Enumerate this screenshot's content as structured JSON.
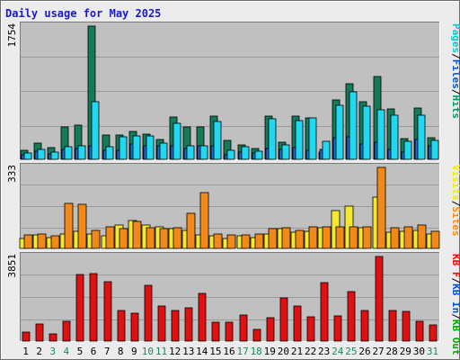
{
  "chart_data": {
    "type": "bar",
    "title": "Daily usage for May 2025",
    "categories": [
      "1",
      "2",
      "3",
      "4",
      "5",
      "6",
      "7",
      "8",
      "9",
      "10",
      "11",
      "12",
      "13",
      "14",
      "15",
      "16",
      "17",
      "18",
      "19",
      "20",
      "21",
      "22",
      "23",
      "24",
      "25",
      "26",
      "27",
      "28",
      "29",
      "30",
      "31"
    ],
    "weekend_days": [
      "3",
      "4",
      "10",
      "11",
      "17",
      "18",
      "24",
      "25",
      "31"
    ],
    "panels": [
      {
        "max_label": "1754",
        "ymax": 1754,
        "legend": [
          {
            "text": "Pages",
            "color": "#00cccc"
          },
          {
            "text": "Files",
            "color": "#0055cc"
          },
          {
            "text": "Hits",
            "color": "#009966"
          }
        ],
        "series": [
          {
            "name": "Hits",
            "color": "#157a58",
            "values": [
              114,
              216,
              158,
              428,
              456,
              1754,
              324,
              324,
              373,
              335,
              258,
              555,
              423,
              425,
              571,
              245,
              191,
              143,
              566,
              226,
              573,
              547,
              100,
              778,
              994,
              755,
              1093,
              663,
              275,
              678,
              280
            ]
          },
          {
            "name": "Files",
            "color": "#1f6fd1",
            "values": [
              60,
              110,
              70,
              130,
              140,
              180,
              120,
              120,
              200,
              180,
              180,
              180,
              140,
              180,
              180,
              60,
              100,
              80,
              140,
              130,
              150,
              120,
              130,
              280,
              300,
              200,
              230,
              130,
              100,
              260,
              180
            ]
          },
          {
            "name": "Pages",
            "color": "#22d8f0",
            "values": [
              80,
              130,
              100,
              170,
              180,
              758,
              160,
              300,
              303,
              306,
              217,
              478,
              175,
              175,
              503,
              115,
              161,
              110,
              536,
              191,
              510,
              541,
              240,
              710,
              892,
              700,
              652,
              580,
              240,
              585,
              250
            ]
          }
        ]
      },
      {
        "max_label": "333",
        "ymax": 333,
        "legend": [
          {
            "text": "Visits",
            "color": "#eeee00"
          },
          {
            "text": "Sites",
            "color": "#ff8800"
          }
        ],
        "series": [
          {
            "name": "Visits",
            "color": "#f5e830",
            "values": [
              42,
              55,
              45,
              60,
              70,
              60,
              52,
              95,
              115,
              95,
              90,
              80,
              75,
              55,
              50,
              40,
              50,
              45,
              60,
              80,
              65,
              70,
              85,
              155,
              175,
              85,
              210,
              65,
              70,
              75,
              60
            ]
          },
          {
            "name": "Sites",
            "color": "#f0881a",
            "values": [
              55,
              60,
              50,
              186,
              182,
              75,
              90,
              80,
              110,
              85,
              80,
              85,
              145,
              228,
              60,
              55,
              55,
              60,
              80,
              85,
              75,
              90,
              90,
              90,
              90,
              90,
              333,
              85,
              90,
              95,
              70
            ]
          }
        ]
      },
      {
        "max_label": "3851",
        "ymax": 3851,
        "legend": [
          {
            "text": "KB F",
            "color": "#ff0000"
          },
          {
            "text": "KB In",
            "color": "#0055cc"
          },
          {
            "text": "KB Out",
            "color": "#00aa00"
          }
        ],
        "series": [
          {
            "name": "KB F",
            "color": "#e01010",
            "values": [
              393,
              791,
              327,
              919,
              3020,
              3070,
              2700,
              1400,
              1253,
              2520,
              1600,
              1400,
              1530,
              2167,
              842,
              842,
              1176,
              541,
              1050,
              1950,
              1590,
              1120,
              2670,
              1140,
              2250,
              1400,
              3851,
              1400,
              1360,
              890,
              737
            ]
          }
        ]
      }
    ]
  }
}
